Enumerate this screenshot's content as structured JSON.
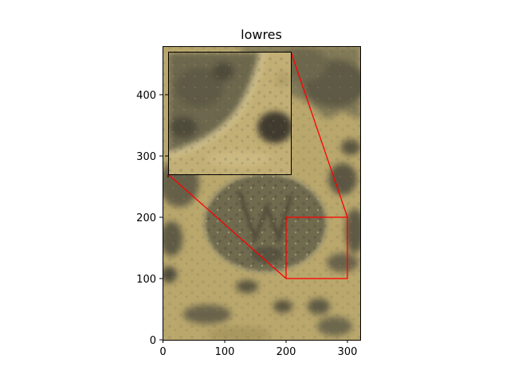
{
  "title": "lowres",
  "axes": {
    "xlim": [
      0,
      320
    ],
    "ylim": [
      0,
      480
    ],
    "x_ticks": [
      "0",
      "100",
      "200",
      "300"
    ],
    "y_ticks": [
      "0",
      "100",
      "200",
      "300",
      "400"
    ]
  },
  "inset": {
    "x_range": [
      200,
      300
    ],
    "y_range": [
      100,
      200
    ],
    "edge_color": "#ff0000",
    "connector_color": "#ff0000"
  },
  "colors": {
    "sand": "#b8a66a",
    "sand_light": "#c8b57d",
    "rock": "#6b654c",
    "rock_dark": "#4f4b3a"
  }
}
